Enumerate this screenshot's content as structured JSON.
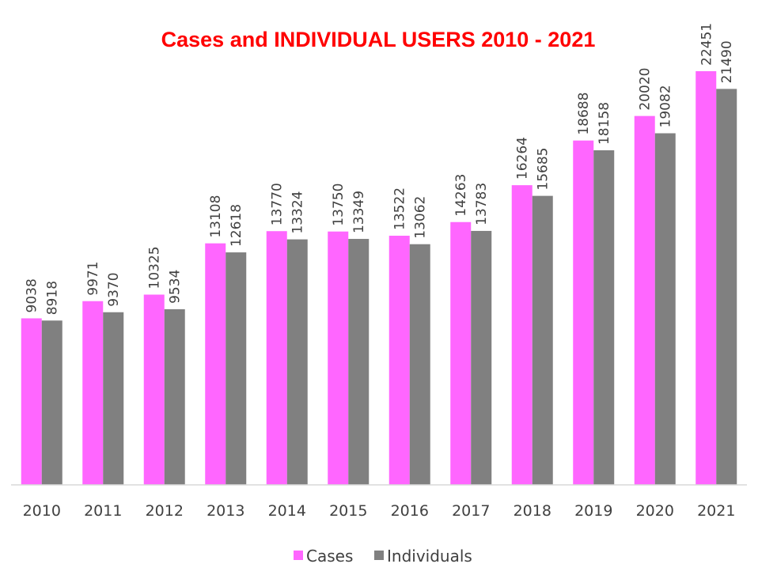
{
  "chart_data": {
    "type": "bar",
    "title": "Cases and INDIVIDUAL USERS  2010 - 2021",
    "categories": [
      "2010",
      "2011",
      "2012",
      "2013",
      "2014",
      "2015",
      "2016",
      "2017",
      "2018",
      "2019",
      "2020",
      "2021"
    ],
    "series": [
      {
        "name": "Cases",
        "color": "#ff66ff",
        "values": [
          9038,
          9971,
          10325,
          13108,
          13770,
          13750,
          13522,
          14263,
          16264,
          18688,
          20020,
          22451
        ]
      },
      {
        "name": "Individuals",
        "color": "#808080",
        "values": [
          8918,
          9370,
          9534,
          12618,
          13324,
          13349,
          13062,
          13783,
          15685,
          18158,
          19082,
          21490
        ]
      }
    ],
    "ylim": [
      0,
      22451
    ],
    "grid": false,
    "legend": "bottom",
    "data_labels": true,
    "title_color": "#ff0000"
  }
}
